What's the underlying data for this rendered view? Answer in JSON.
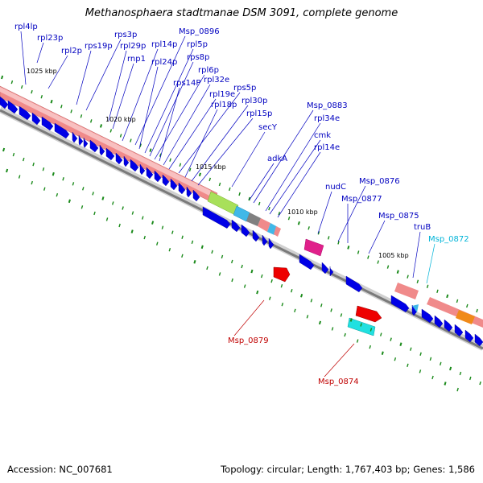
{
  "title": "Methanosphaera stadtmanae DSM 3091, complete genome",
  "footer": {
    "accession": "Accession: NC_007681",
    "summary": "Topology: circular; Length: 1,767,403 bp; Genes: 1,586"
  },
  "colors": {
    "label_blue": "#0000c0",
    "label_red": "#c00000",
    "label_cyan": "#00b4d8",
    "forward_rrna_pink": "#f09090",
    "gene_blue": "#0000e0",
    "tick_green": "#1a8a1a",
    "backbone_gray": "#808080"
  },
  "scale_labels": [
    "1025 kbp",
    "1020 kbp",
    "1015 kbp",
    "1010 kbp",
    "1005 kbp"
  ],
  "gene_labels": [
    {
      "text": "rpl4lp",
      "color": "blue"
    },
    {
      "text": "rpl23p",
      "color": "blue"
    },
    {
      "text": "rpl2p",
      "color": "blue"
    },
    {
      "text": "rps19p",
      "color": "blue"
    },
    {
      "text": "rps3p",
      "color": "blue"
    },
    {
      "text": "rpl29p",
      "color": "blue"
    },
    {
      "text": "rnp1",
      "color": "blue"
    },
    {
      "text": "rpl14p",
      "color": "blue"
    },
    {
      "text": "Msp_0896",
      "color": "blue"
    },
    {
      "text": "rpl24p",
      "color": "blue"
    },
    {
      "text": "rpl5p",
      "color": "blue"
    },
    {
      "text": "rps8p",
      "color": "blue"
    },
    {
      "text": "rpl6p",
      "color": "blue"
    },
    {
      "text": "rps14P",
      "color": "blue"
    },
    {
      "text": "rpl32e",
      "color": "blue"
    },
    {
      "text": "rpl19e",
      "color": "blue"
    },
    {
      "text": "rps5p",
      "color": "blue"
    },
    {
      "text": "rpl18p",
      "color": "blue"
    },
    {
      "text": "rpl30p",
      "color": "blue"
    },
    {
      "text": "rpl15p",
      "color": "blue"
    },
    {
      "text": "secY",
      "color": "blue"
    },
    {
      "text": "adkA",
      "color": "blue"
    },
    {
      "text": "Msp_0883",
      "color": "blue"
    },
    {
      "text": "rpl34e",
      "color": "blue"
    },
    {
      "text": "cmk",
      "color": "blue"
    },
    {
      "text": "rpl14e",
      "color": "blue"
    },
    {
      "text": "nudC",
      "color": "blue"
    },
    {
      "text": "Msp_0876",
      "color": "blue"
    },
    {
      "text": "Msp_0877",
      "color": "blue"
    },
    {
      "text": "Msp_0875",
      "color": "blue"
    },
    {
      "text": "truB",
      "color": "blue"
    },
    {
      "text": "Msp_0872",
      "color": "cyan"
    },
    {
      "text": "Msp_0879",
      "color": "red"
    },
    {
      "text": "Msp_0874",
      "color": "red"
    }
  ]
}
